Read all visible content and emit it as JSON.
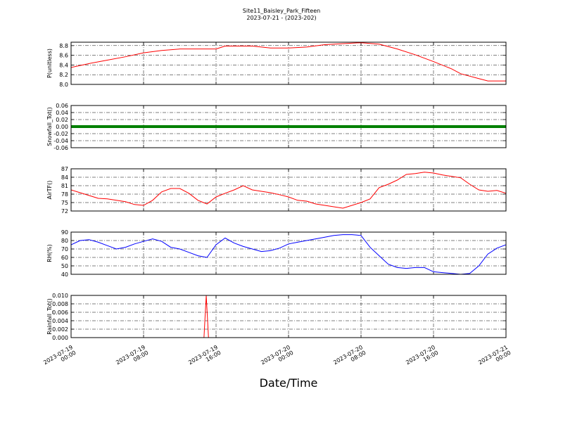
{
  "chart_data": {
    "title": "Site11_Baisley_Park_Fifteen",
    "subtitle": "2023-07-21 - (2023-202)",
    "xlabel": "Date/Time",
    "xlim": [
      "2023-07-19 00:00",
      "2023-07-21 00:00"
    ],
    "xticks": [
      "2023-07-19 00:00",
      "2023-07-19 08:00",
      "2023-07-19 16:00",
      "2023-07-20 00:00",
      "2023-07-20 08:00",
      "2023-07-20 16:00",
      "2023-07-21 00:00"
    ],
    "grid": true,
    "panels": [
      {
        "type": "line",
        "ylabel": "P(unitless)",
        "color": "#ff0000",
        "ylim": [
          8.0,
          8.87
        ],
        "yticks": [
          {
            "value": 8.0,
            "label": "8.0"
          },
          8.2,
          8.4,
          8.6,
          8.8
        ],
        "x": [
          "2023-07-19 00:00",
          "2023-07-19 02:00",
          "2023-07-19 04:00",
          "2023-07-19 06:00",
          "2023-07-19 08:00",
          "2023-07-19 10:00",
          "2023-07-19 12:00",
          "2023-07-19 16:00",
          "2023-07-19 17:00",
          "2023-07-19 20:00",
          "2023-07-19 22:00",
          "2023-07-20 00:00",
          "2023-07-20 02:00",
          "2023-07-20 04:00",
          "2023-07-20 08:00",
          "2023-07-20 10:00",
          "2023-07-20 12:00",
          "2023-07-20 14:00",
          "2023-07-20 16:00",
          "2023-07-20 18:00",
          "2023-07-20 19:00",
          "2023-07-20 21:00",
          "2023-07-20 22:00",
          "2023-07-21 00:00"
        ],
        "values": [
          8.35,
          8.43,
          8.5,
          8.57,
          8.65,
          8.7,
          8.73,
          8.73,
          8.79,
          8.79,
          8.75,
          8.75,
          8.77,
          8.82,
          8.86,
          8.83,
          8.73,
          8.61,
          8.47,
          8.32,
          8.22,
          8.12,
          8.07,
          8.07
        ]
      },
      {
        "type": "line",
        "ylabel": "Snowfall_Tot()",
        "color": "#008000",
        "linewidth": 4,
        "ylim": [
          -0.06,
          0.06
        ],
        "yticks": [
          -0.06,
          -0.04,
          -0.02,
          {
            "value": 0,
            "label": "0.00"
          },
          0.02,
          0.04,
          0.06
        ],
        "x": [
          "2023-07-19 00:00",
          "2023-07-19 12:00",
          "2023-07-20 00:00",
          "2023-07-20 12:00",
          "2023-07-21 00:00"
        ],
        "values": [
          0,
          0,
          0,
          0,
          0
        ]
      },
      {
        "type": "line",
        "ylabel": "AirTF()",
        "color": "#ff0000",
        "ylim": [
          72,
          87
        ],
        "yticks": [
          72,
          75,
          78,
          81,
          84,
          87
        ],
        "x": [
          "2023-07-19 00:00",
          "2023-07-19 01:00",
          "2023-07-19 02:00",
          "2023-07-19 03:00",
          "2023-07-19 04:00",
          "2023-07-19 05:00",
          "2023-07-19 06:00",
          "2023-07-19 07:00",
          "2023-07-19 08:00",
          "2023-07-19 09:00",
          "2023-07-19 10:00",
          "2023-07-19 11:00",
          "2023-07-19 12:00",
          "2023-07-19 13:00",
          "2023-07-19 14:00",
          "2023-07-19 15:00",
          "2023-07-19 16:00",
          "2023-07-19 17:00",
          "2023-07-19 18:00",
          "2023-07-19 19:00",
          "2023-07-19 20:00",
          "2023-07-19 21:00",
          "2023-07-19 22:00",
          "2023-07-19 23:00",
          "2023-07-20 00:00",
          "2023-07-20 01:00",
          "2023-07-20 02:00",
          "2023-07-20 03:00",
          "2023-07-20 04:00",
          "2023-07-20 05:00",
          "2023-07-20 06:00",
          "2023-07-20 07:00",
          "2023-07-20 08:00",
          "2023-07-20 09:00",
          "2023-07-20 10:00",
          "2023-07-20 11:00",
          "2023-07-20 12:00",
          "2023-07-20 13:00",
          "2023-07-20 14:00",
          "2023-07-20 15:00",
          "2023-07-20 16:00",
          "2023-07-20 17:00",
          "2023-07-20 18:00",
          "2023-07-20 19:00",
          "2023-07-20 20:00",
          "2023-07-20 21:00",
          "2023-07-20 22:00",
          "2023-07-20 23:00",
          "2023-07-21 00:00"
        ],
        "values": [
          79.5,
          78.5,
          77.5,
          76.5,
          76.3,
          75.8,
          75.3,
          74.3,
          74,
          75.8,
          78.8,
          80,
          80,
          78.3,
          75.8,
          74.5,
          77,
          78.3,
          79.5,
          81,
          79.5,
          79,
          78.5,
          77.8,
          77,
          75.8,
          75.5,
          74.5,
          74,
          73.5,
          73,
          74,
          75,
          76.3,
          80.3,
          81.5,
          83,
          85,
          85.3,
          85.8,
          85.5,
          84.8,
          84.3,
          83.8,
          81.5,
          79.5,
          79,
          79.3,
          78.3
        ]
      },
      {
        "type": "line",
        "ylabel": "RH(%)",
        "color": "#0000ff",
        "ylim": [
          40,
          90
        ],
        "yticks": [
          40,
          50,
          60,
          70,
          80,
          90
        ],
        "x": [
          "2023-07-19 00:00",
          "2023-07-19 01:00",
          "2023-07-19 02:00",
          "2023-07-19 03:00",
          "2023-07-19 04:00",
          "2023-07-19 05:00",
          "2023-07-19 06:00",
          "2023-07-19 07:00",
          "2023-07-19 08:00",
          "2023-07-19 09:00",
          "2023-07-19 10:00",
          "2023-07-19 11:00",
          "2023-07-19 12:00",
          "2023-07-19 13:00",
          "2023-07-19 14:00",
          "2023-07-19 15:00",
          "2023-07-19 16:00",
          "2023-07-19 17:00",
          "2023-07-19 18:00",
          "2023-07-19 19:00",
          "2023-07-19 20:00",
          "2023-07-19 21:00",
          "2023-07-19 22:00",
          "2023-07-19 23:00",
          "2023-07-20 00:00",
          "2023-07-20 01:00",
          "2023-07-20 02:00",
          "2023-07-20 03:00",
          "2023-07-20 04:00",
          "2023-07-20 05:00",
          "2023-07-20 06:00",
          "2023-07-20 07:00",
          "2023-07-20 08:00",
          "2023-07-20 09:00",
          "2023-07-20 10:00",
          "2023-07-20 11:00",
          "2023-07-20 12:00",
          "2023-07-20 13:00",
          "2023-07-20 14:00",
          "2023-07-20 15:00",
          "2023-07-20 16:00",
          "2023-07-20 17:00",
          "2023-07-20 18:00",
          "2023-07-20 19:00",
          "2023-07-20 20:00",
          "2023-07-20 21:00",
          "2023-07-20 22:00",
          "2023-07-20 23:00",
          "2023-07-21 00:00"
        ],
        "values": [
          75,
          80,
          81,
          78,
          74,
          70,
          72,
          76,
          79,
          82,
          79,
          72,
          70,
          66,
          62,
          60,
          75,
          83,
          77,
          73,
          70,
          67,
          68,
          71,
          76,
          78,
          80,
          82,
          84,
          86,
          87,
          87,
          86,
          72,
          62,
          52,
          48,
          47,
          48,
          48,
          43,
          42,
          41,
          40,
          41,
          50,
          64,
          71,
          75
        ]
      },
      {
        "type": "line",
        "ylabel": "Rainfall_Tot()",
        "color": "#ff0000",
        "ylim": [
          0,
          0.01
        ],
        "yticks": [
          {
            "value": 0,
            "label": "0.000"
          },
          0.002,
          0.004,
          0.006,
          0.008,
          {
            "value": 0.01,
            "label": "0.010"
          }
        ],
        "x": [
          "2023-07-19 00:00",
          "2023-07-19 14:40",
          "2023-07-19 14:55",
          "2023-07-19 15:10",
          "2023-07-21 00:00"
        ],
        "values": [
          0,
          0,
          0.01,
          0,
          0
        ]
      }
    ]
  }
}
